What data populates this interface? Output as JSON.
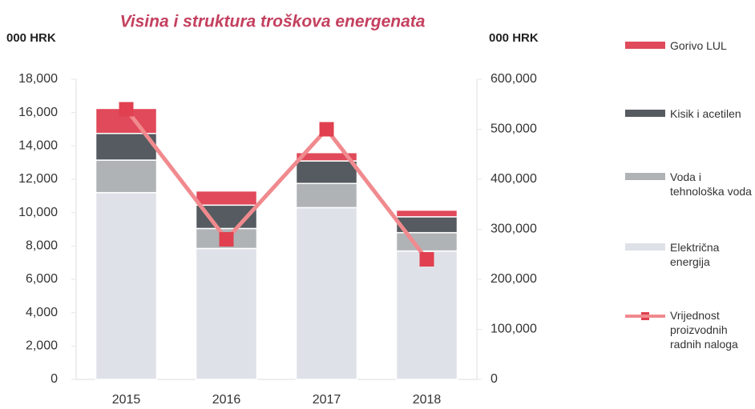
{
  "chart_data": {
    "type": "bar",
    "stacked": true,
    "title": "Visina i struktura troškova energenata",
    "ylabel": "000 HRK",
    "y2label": "000 HRK",
    "categories": [
      "2015",
      "2016",
      "2017",
      "2018"
    ],
    "series": [
      {
        "name": "Električna energija",
        "color": "#dfe1e8",
        "values": [
          11200,
          7850,
          10300,
          7700
        ]
      },
      {
        "name": "Voda i tehnološka voda",
        "color": "#b0b3b6",
        "values": [
          1950,
          1200,
          1450,
          1100
        ]
      },
      {
        "name": "Kisik i acetilen",
        "color": "#555b60",
        "values": [
          1600,
          1400,
          1350,
          950
        ]
      },
      {
        "name": "Gorivo LUL",
        "color": "#e04a5a",
        "values": [
          1500,
          850,
          500,
          400
        ]
      },
      {
        "name": "Vrijednost proizvodnih radnih naloga",
        "color": "#f08a8e",
        "marker_color": "#e0404f",
        "type": "line",
        "axis": "y2",
        "values": [
          540000,
          280000,
          500000,
          240000
        ]
      }
    ],
    "ylim": [
      0,
      18000
    ],
    "yticks": [
      0,
      {
        "value": 2000,
        "label": "2,000"
      },
      {
        "value": 4000,
        "label": "4,000"
      },
      {
        "value": 6000,
        "label": "6,000"
      },
      {
        "value": 8000,
        "label": "8,000"
      },
      {
        "value": 10000,
        "label": "10,000"
      },
      {
        "value": 12000,
        "label": "12,000"
      },
      {
        "value": 14000,
        "label": "14,000"
      },
      {
        "value": 16000,
        "label": "16,000"
      },
      {
        "value": 18000,
        "label": "18,000"
      }
    ],
    "y2lim": [
      0,
      600000
    ],
    "y2ticks": [
      0,
      {
        "value": 100000,
        "label": "100,000"
      },
      {
        "value": 200000,
        "label": "200,000"
      },
      {
        "value": 300000,
        "label": "300,000"
      },
      {
        "value": 400000,
        "label": "400,000"
      },
      {
        "value": 500000,
        "label": "500,000"
      },
      {
        "value": 600000,
        "label": "600,000"
      }
    ],
    "legend": "right"
  }
}
